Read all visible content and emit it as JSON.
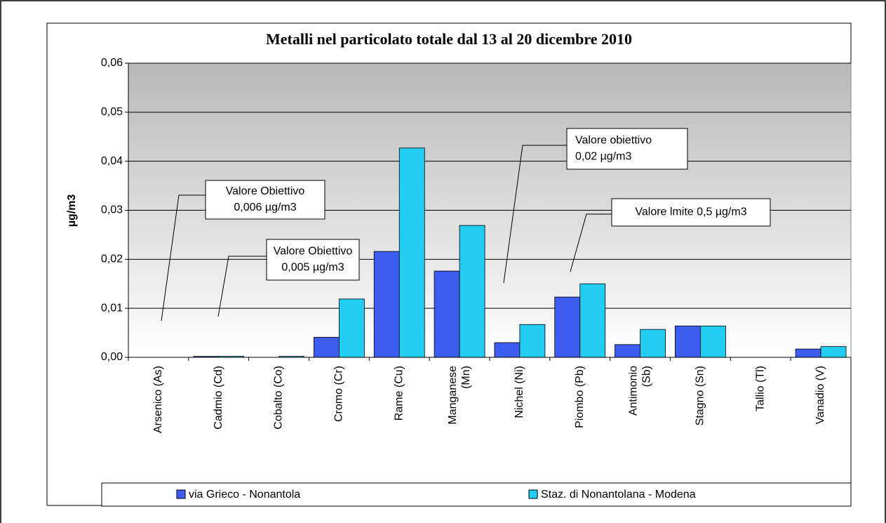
{
  "chart_data": {
    "type": "bar",
    "title": "Metalli nel particolato totale dal 13 al 20 dicembre 2010",
    "y_label": "µg/m3",
    "categories": [
      "Arsenico (As)",
      "Cadmio (Cd)",
      "Cobalto (Co)",
      "Cromo (Cr)",
      "Rame (Cu)",
      "Manganese (Mn)",
      "Nichel (Ni)",
      "Piombo (Pb)",
      "Antimonio (Sb)",
      "Stagno (Sn)",
      "Tallio (Tl)",
      "Vanadio (V)"
    ],
    "series": [
      {
        "name": "via Grieco - Nonantola",
        "color": "#3d5cf0",
        "values": [
          0,
          0.0002,
          0,
          0.0041,
          0.0216,
          0.0176,
          0.003,
          0.0123,
          0.0026,
          0.0064,
          0,
          0.0017
        ]
      },
      {
        "name": "Staz. di Nonantolana - Modena",
        "color": "#22cdf2",
        "values": [
          0,
          0.0002,
          0.0002,
          0.0119,
          0.0427,
          0.0269,
          0.0067,
          0.015,
          0.0057,
          0.0064,
          0,
          0.0022
        ]
      }
    ],
    "ylim": [
      0,
      0.06
    ],
    "yticks": [
      {
        "value": 0,
        "label": "0,00"
      },
      {
        "value": 0.01,
        "label": "0,01"
      },
      {
        "value": 0.02,
        "label": "0,02"
      },
      {
        "value": 0.03,
        "label": "0,03"
      },
      {
        "value": 0.04,
        "label": "0,04"
      },
      {
        "value": 0.05,
        "label": "0,05"
      },
      {
        "value": 0.06,
        "label": "0,06"
      }
    ],
    "grid": true,
    "legend": "bottom",
    "annotations": [
      {
        "lines": [
          "Valore Obiettivo",
          "0,006 µg/m3"
        ]
      },
      {
        "lines": [
          "Valore Obiettivo",
          "0,005 µg/m3"
        ]
      },
      {
        "lines": [
          "Valore obiettivo",
          "0,02 µg/m3"
        ]
      },
      {
        "lines": [
          "Valore lmite 0,5 µg/m3"
        ]
      }
    ]
  }
}
